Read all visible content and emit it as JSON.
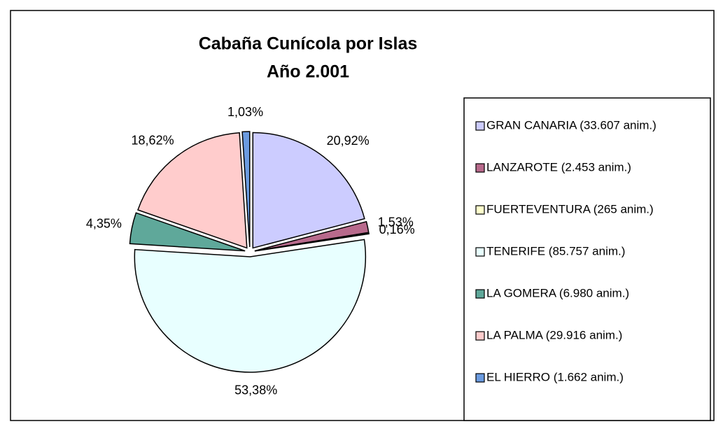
{
  "chart_data": {
    "type": "pie",
    "title": "Cabaña Cunícola por Islas",
    "subtitle": "Año 2.001",
    "categories": [
      "GRAN CANARIA (33.607 anim.)",
      "LANZAROTE (2.453 anim.)",
      "FUERTEVENTURA (265 anim.)",
      "TENERIFE (85.757 anim.)",
      "LA GOMERA (6.980 anim.)",
      "LA PALMA (29.916 anim.)",
      "EL HIERRO (1.662 anim.)"
    ],
    "values": [
      20.92,
      1.53,
      0.16,
      53.38,
      4.35,
      18.62,
      1.03
    ],
    "value_labels": [
      "20,92%",
      "1,53%",
      "0,16%",
      "53,38%",
      "4,35%",
      "18,62%",
      "1,03%"
    ],
    "colors": [
      "#ccccff",
      "#b86a8c",
      "#ffffcc",
      "#e8ffff",
      "#5fa89a",
      "#ffcccc",
      "#6b9be0"
    ],
    "legend": "right"
  }
}
